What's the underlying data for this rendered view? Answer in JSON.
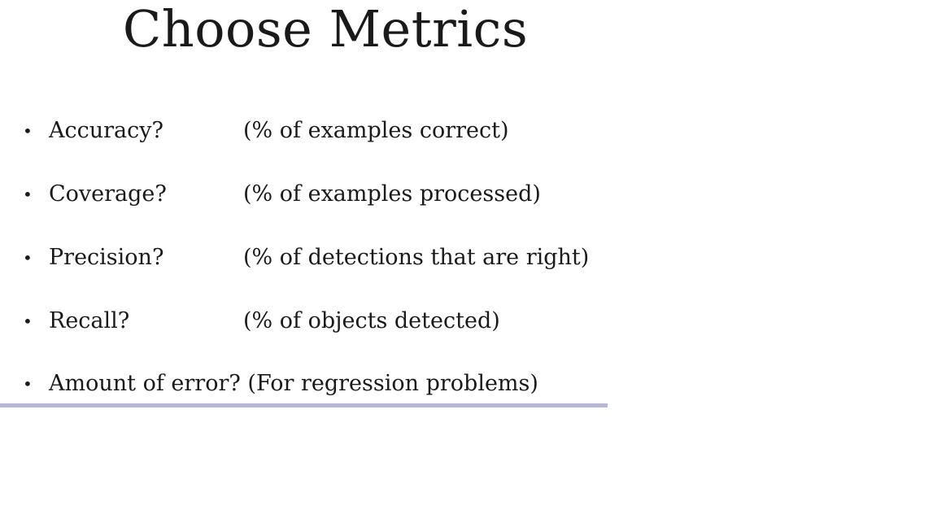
{
  "slide": {
    "title": "Choose Metrics",
    "bullet_symbol": "•",
    "items": [
      {
        "term": "Accuracy?",
        "description": "(% of examples correct)"
      },
      {
        "term": "Coverage?",
        "description": "(% of examples processed)"
      },
      {
        "term": "Precision?",
        "description": "(% of detections that are right)"
      },
      {
        "term": "Recall?",
        "description": "(% of objects detected)"
      },
      {
        "term": "Amount of error?",
        "description": "(For regression problems)"
      }
    ],
    "rule_color": "#b4b8d4"
  }
}
